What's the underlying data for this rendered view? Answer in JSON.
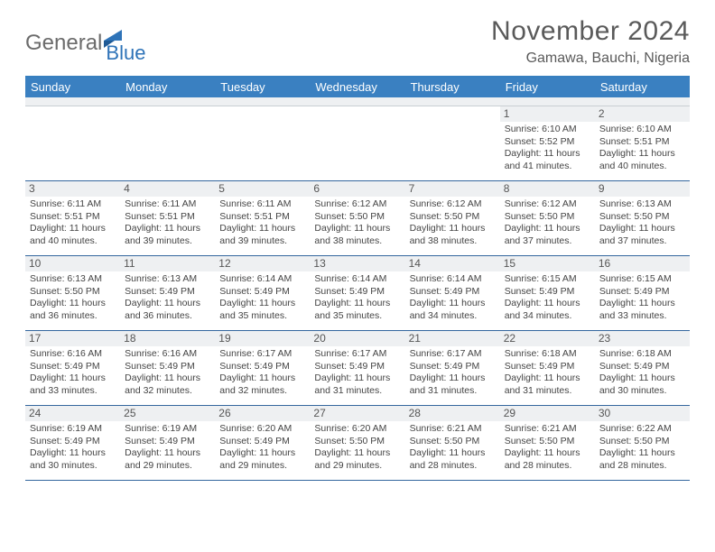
{
  "brand": {
    "part1": "General",
    "part2": "Blue"
  },
  "title": "November 2024",
  "location": "Gamawa, Bauchi, Nigeria",
  "colors": {
    "header_bar": "#3a80c1",
    "accent": "#2e73b8",
    "text": "#444444",
    "daynum_bg": "#eef0f2",
    "row_border": "#34679e"
  },
  "weekdays": [
    "Sunday",
    "Monday",
    "Tuesday",
    "Wednesday",
    "Thursday",
    "Friday",
    "Saturday"
  ],
  "weeks": [
    [
      {
        "n": "",
        "sr": "",
        "ss": "",
        "dl": ""
      },
      {
        "n": "",
        "sr": "",
        "ss": "",
        "dl": ""
      },
      {
        "n": "",
        "sr": "",
        "ss": "",
        "dl": ""
      },
      {
        "n": "",
        "sr": "",
        "ss": "",
        "dl": ""
      },
      {
        "n": "",
        "sr": "",
        "ss": "",
        "dl": ""
      },
      {
        "n": "1",
        "sr": "Sunrise: 6:10 AM",
        "ss": "Sunset: 5:52 PM",
        "dl": "Daylight: 11 hours and 41 minutes."
      },
      {
        "n": "2",
        "sr": "Sunrise: 6:10 AM",
        "ss": "Sunset: 5:51 PM",
        "dl": "Daylight: 11 hours and 40 minutes."
      }
    ],
    [
      {
        "n": "3",
        "sr": "Sunrise: 6:11 AM",
        "ss": "Sunset: 5:51 PM",
        "dl": "Daylight: 11 hours and 40 minutes."
      },
      {
        "n": "4",
        "sr": "Sunrise: 6:11 AM",
        "ss": "Sunset: 5:51 PM",
        "dl": "Daylight: 11 hours and 39 minutes."
      },
      {
        "n": "5",
        "sr": "Sunrise: 6:11 AM",
        "ss": "Sunset: 5:51 PM",
        "dl": "Daylight: 11 hours and 39 minutes."
      },
      {
        "n": "6",
        "sr": "Sunrise: 6:12 AM",
        "ss": "Sunset: 5:50 PM",
        "dl": "Daylight: 11 hours and 38 minutes."
      },
      {
        "n": "7",
        "sr": "Sunrise: 6:12 AM",
        "ss": "Sunset: 5:50 PM",
        "dl": "Daylight: 11 hours and 38 minutes."
      },
      {
        "n": "8",
        "sr": "Sunrise: 6:12 AM",
        "ss": "Sunset: 5:50 PM",
        "dl": "Daylight: 11 hours and 37 minutes."
      },
      {
        "n": "9",
        "sr": "Sunrise: 6:13 AM",
        "ss": "Sunset: 5:50 PM",
        "dl": "Daylight: 11 hours and 37 minutes."
      }
    ],
    [
      {
        "n": "10",
        "sr": "Sunrise: 6:13 AM",
        "ss": "Sunset: 5:50 PM",
        "dl": "Daylight: 11 hours and 36 minutes."
      },
      {
        "n": "11",
        "sr": "Sunrise: 6:13 AM",
        "ss": "Sunset: 5:49 PM",
        "dl": "Daylight: 11 hours and 36 minutes."
      },
      {
        "n": "12",
        "sr": "Sunrise: 6:14 AM",
        "ss": "Sunset: 5:49 PM",
        "dl": "Daylight: 11 hours and 35 minutes."
      },
      {
        "n": "13",
        "sr": "Sunrise: 6:14 AM",
        "ss": "Sunset: 5:49 PM",
        "dl": "Daylight: 11 hours and 35 minutes."
      },
      {
        "n": "14",
        "sr": "Sunrise: 6:14 AM",
        "ss": "Sunset: 5:49 PM",
        "dl": "Daylight: 11 hours and 34 minutes."
      },
      {
        "n": "15",
        "sr": "Sunrise: 6:15 AM",
        "ss": "Sunset: 5:49 PM",
        "dl": "Daylight: 11 hours and 34 minutes."
      },
      {
        "n": "16",
        "sr": "Sunrise: 6:15 AM",
        "ss": "Sunset: 5:49 PM",
        "dl": "Daylight: 11 hours and 33 minutes."
      }
    ],
    [
      {
        "n": "17",
        "sr": "Sunrise: 6:16 AM",
        "ss": "Sunset: 5:49 PM",
        "dl": "Daylight: 11 hours and 33 minutes."
      },
      {
        "n": "18",
        "sr": "Sunrise: 6:16 AM",
        "ss": "Sunset: 5:49 PM",
        "dl": "Daylight: 11 hours and 32 minutes."
      },
      {
        "n": "19",
        "sr": "Sunrise: 6:17 AM",
        "ss": "Sunset: 5:49 PM",
        "dl": "Daylight: 11 hours and 32 minutes."
      },
      {
        "n": "20",
        "sr": "Sunrise: 6:17 AM",
        "ss": "Sunset: 5:49 PM",
        "dl": "Daylight: 11 hours and 31 minutes."
      },
      {
        "n": "21",
        "sr": "Sunrise: 6:17 AM",
        "ss": "Sunset: 5:49 PM",
        "dl": "Daylight: 11 hours and 31 minutes."
      },
      {
        "n": "22",
        "sr": "Sunrise: 6:18 AM",
        "ss": "Sunset: 5:49 PM",
        "dl": "Daylight: 11 hours and 31 minutes."
      },
      {
        "n": "23",
        "sr": "Sunrise: 6:18 AM",
        "ss": "Sunset: 5:49 PM",
        "dl": "Daylight: 11 hours and 30 minutes."
      }
    ],
    [
      {
        "n": "24",
        "sr": "Sunrise: 6:19 AM",
        "ss": "Sunset: 5:49 PM",
        "dl": "Daylight: 11 hours and 30 minutes."
      },
      {
        "n": "25",
        "sr": "Sunrise: 6:19 AM",
        "ss": "Sunset: 5:49 PM",
        "dl": "Daylight: 11 hours and 29 minutes."
      },
      {
        "n": "26",
        "sr": "Sunrise: 6:20 AM",
        "ss": "Sunset: 5:49 PM",
        "dl": "Daylight: 11 hours and 29 minutes."
      },
      {
        "n": "27",
        "sr": "Sunrise: 6:20 AM",
        "ss": "Sunset: 5:50 PM",
        "dl": "Daylight: 11 hours and 29 minutes."
      },
      {
        "n": "28",
        "sr": "Sunrise: 6:21 AM",
        "ss": "Sunset: 5:50 PM",
        "dl": "Daylight: 11 hours and 28 minutes."
      },
      {
        "n": "29",
        "sr": "Sunrise: 6:21 AM",
        "ss": "Sunset: 5:50 PM",
        "dl": "Daylight: 11 hours and 28 minutes."
      },
      {
        "n": "30",
        "sr": "Sunrise: 6:22 AM",
        "ss": "Sunset: 5:50 PM",
        "dl": "Daylight: 11 hours and 28 minutes."
      }
    ]
  ]
}
